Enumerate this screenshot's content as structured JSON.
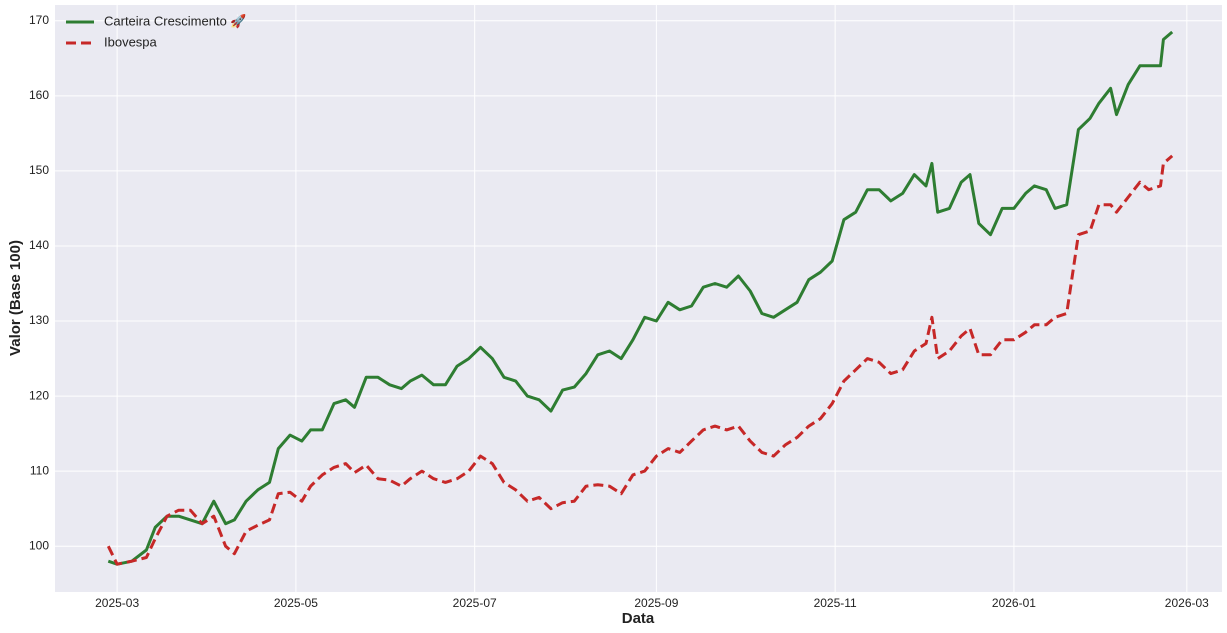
{
  "chart_data": {
    "type": "line",
    "x_label": "Data",
    "y_label": "Valor (Base 100)",
    "x": [
      -3,
      0,
      5,
      10,
      13,
      17,
      21,
      25,
      29,
      33,
      37,
      40,
      44,
      48,
      52,
      55,
      59,
      63,
      66,
      70,
      74,
      78,
      81,
      85,
      89,
      93,
      97,
      100,
      104,
      108,
      112,
      116,
      120,
      124,
      128,
      132,
      136,
      140,
      144,
      148,
      152,
      156,
      160,
      164,
      168,
      172,
      176,
      180,
      184,
      188,
      192,
      196,
      200,
      204,
      208,
      212,
      216,
      220,
      224,
      228,
      232,
      236,
      240,
      244,
      248,
      252,
      256,
      260,
      264,
      268,
      272,
      276,
      278,
      280,
      284,
      288,
      291,
      294,
      298,
      302,
      306,
      310,
      313,
      317,
      320,
      324,
      328,
      332,
      335,
      339,
      341,
      345,
      349,
      352,
      356,
      357,
      360
    ],
    "series": [
      {
        "name": "Carteira Crescimento 🚀",
        "color": "#2e7d32",
        "dash": false,
        "values": [
          98,
          97.6,
          98,
          99.5,
          102.5,
          104,
          104,
          103.5,
          103,
          106,
          103,
          103.5,
          106,
          107.5,
          108.5,
          113,
          114.8,
          114,
          115.5,
          115.5,
          119,
          119.5,
          118.5,
          122.5,
          122.5,
          121.5,
          121,
          122,
          122.8,
          121.5,
          121.5,
          124,
          125,
          126.5,
          125,
          122.5,
          122,
          120,
          119.5,
          118,
          120.8,
          121.2,
          123,
          125.5,
          126,
          125,
          127.5,
          130.5,
          130,
          132.5,
          131.5,
          132,
          134.5,
          135,
          134.5,
          136,
          134,
          131,
          130.5,
          131.5,
          132.5,
          135.5,
          136.5,
          138,
          143.5,
          144.5,
          147.5,
          147.5,
          146,
          147,
          149.5,
          148,
          151,
          144.5,
          145,
          148.5,
          149.5,
          143,
          141.5,
          145,
          145,
          147,
          148,
          147.5,
          145,
          145.5,
          155.5,
          157,
          159,
          161,
          157.5,
          161.5,
          164,
          164,
          164,
          167.5,
          168.5
        ]
      },
      {
        "name": "Ibovespa",
        "color": "#c62828",
        "dash": true,
        "values": [
          100,
          97.6,
          98,
          98.5,
          101,
          104,
          104.8,
          104.8,
          103,
          104,
          100,
          99,
          102,
          102.8,
          103.5,
          107,
          107.2,
          106,
          108,
          109.5,
          110.5,
          111,
          109.8,
          110.8,
          109,
          108.8,
          108,
          109,
          110,
          109,
          108.5,
          109,
          110,
          112,
          111,
          108.5,
          107.5,
          106,
          106.5,
          105,
          105.8,
          106,
          108,
          108.2,
          108,
          107,
          109.5,
          110,
          112,
          113,
          112.5,
          114,
          115.5,
          116,
          115.5,
          116,
          114,
          112.5,
          112,
          113.5,
          114.5,
          116,
          117,
          119,
          122,
          123.5,
          125,
          124.5,
          123,
          123.5,
          126,
          127,
          130.5,
          125,
          126,
          128,
          129,
          125.5,
          125.5,
          127.5,
          127.5,
          128.5,
          129.5,
          129.5,
          130.5,
          131,
          141.5,
          142,
          145.5,
          145.5,
          144.5,
          146.5,
          148.5,
          147.5,
          148,
          151,
          152
        ]
      }
    ],
    "xlim": [
      -21.2,
      377
    ],
    "xticks": [
      {
        "value": 0,
        "label": "2025-03"
      },
      {
        "value": 61,
        "label": "2025-05"
      },
      {
        "value": 122,
        "label": "2025-07"
      },
      {
        "value": 184,
        "label": "2025-09"
      },
      {
        "value": 245,
        "label": "2025-11"
      },
      {
        "value": 306,
        "label": "2026-01"
      },
      {
        "value": 365,
        "label": "2026-03"
      }
    ],
    "ylim": [
      93.9,
      172.1
    ],
    "yticks": [
      100,
      110,
      120,
      130,
      140,
      150,
      160,
      170
    ],
    "grid": true,
    "legend": "upper-left"
  }
}
